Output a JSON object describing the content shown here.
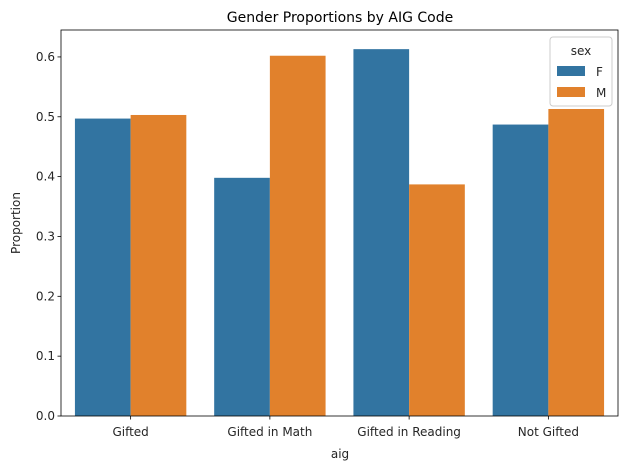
{
  "chart_data": {
    "type": "bar",
    "title": "Gender Proportions by AIG Code",
    "xlabel": "aig",
    "ylabel": "Proportion",
    "categories": [
      "Gifted",
      "Gifted in Math",
      "Gifted in Reading",
      "Not Gifted"
    ],
    "series": [
      {
        "name": "F",
        "color": "#3274a1",
        "values": [
          0.497,
          0.398,
          0.613,
          0.487
        ]
      },
      {
        "name": "M",
        "color": "#e1812c",
        "values": [
          0.503,
          0.602,
          0.387,
          0.513
        ]
      }
    ],
    "ylim": [
      0,
      0.645
    ],
    "yticks": [
      0.0,
      0.1,
      0.2,
      0.3,
      0.4,
      0.5,
      0.6
    ],
    "ytick_labels": [
      "0.0",
      "0.1",
      "0.2",
      "0.3",
      "0.4",
      "0.5",
      "0.6"
    ],
    "grid": false,
    "legend": {
      "title": "sex",
      "placement": "top-right"
    }
  }
}
